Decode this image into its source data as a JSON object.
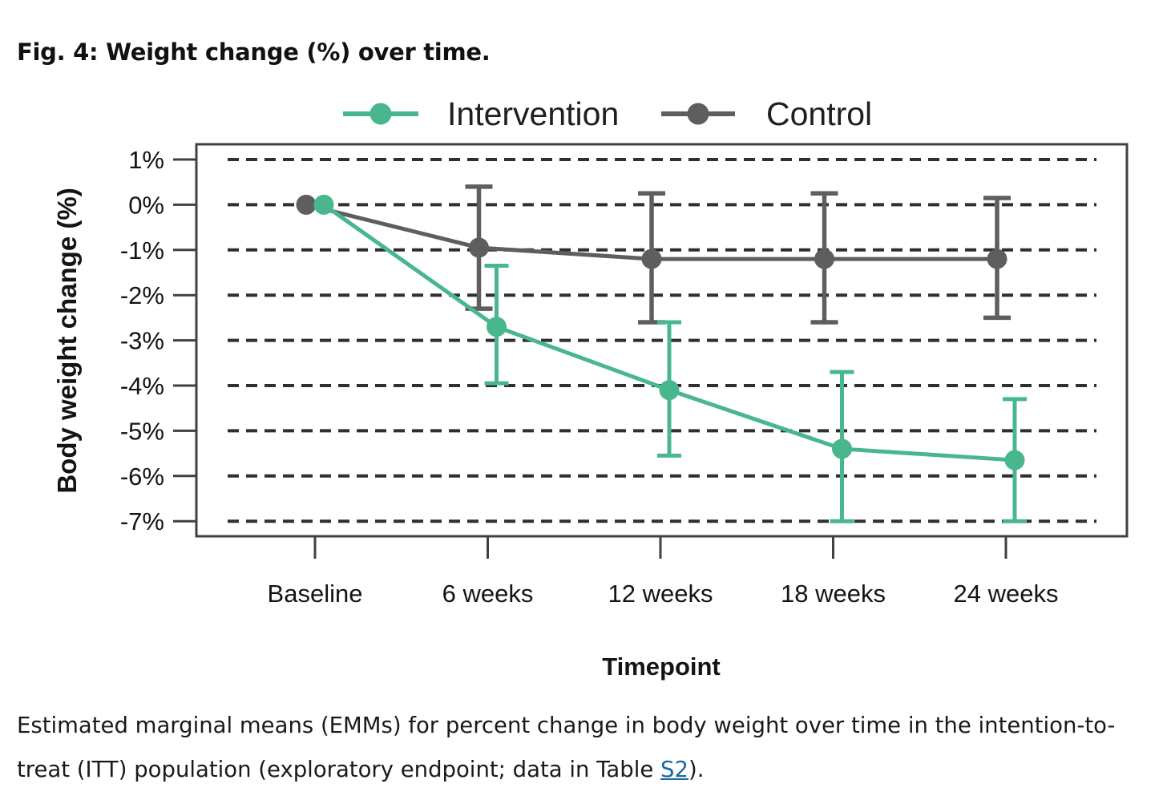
{
  "figure": {
    "title": "Fig. 4: Weight change (%) over time.",
    "caption": {
      "line1": "Estimated marginal means (EMMs) for percent change in body weight over time in the intention-to-",
      "line2_pre": "treat (ITT) population (exploratory endpoint; data in Table ",
      "link_text": "S2",
      "line2_post": ")."
    }
  },
  "colors": {
    "intervention": "#48b78e",
    "control": "#5e5e5e",
    "gridline": "#2f2f2f",
    "plot_border": "#404040",
    "text": "#141414",
    "legend_text": "#1f1f1f",
    "link": "#1769a6",
    "background": "#ffffff"
  },
  "chart_data": {
    "type": "line",
    "title": "",
    "xlabel": "Timepoint",
    "ylabel": "Body weight change (%)",
    "categories": [
      "Baseline",
      "6 weeks",
      "12 weeks",
      "18 weeks",
      "24 weeks"
    ],
    "y_ticks": [
      {
        "label": "1%",
        "value": 1
      },
      {
        "label": "0%",
        "value": 0
      },
      {
        "label": "-1%",
        "value": -1
      },
      {
        "label": "-2%",
        "value": -2
      },
      {
        "label": "-3%",
        "value": -3
      },
      {
        "label": "-4%",
        "value": -4
      },
      {
        "label": "-5%",
        "value": -5
      },
      {
        "label": "-6%",
        "value": -6
      },
      {
        "label": "-7%",
        "value": -7
      }
    ],
    "ylim": [
      -7.3,
      1.35
    ],
    "grid": "horizontal-dashed",
    "legend_position": "top-center",
    "series": [
      {
        "name": "Intervention",
        "color": "#48b78e",
        "values": [
          0,
          -2.7,
          -4.1,
          -5.4,
          -5.65
        ],
        "ci_high": [
          null,
          -1.35,
          -2.6,
          -3.7,
          -4.3
        ],
        "ci_low": [
          null,
          -3.95,
          -5.55,
          -7.0,
          -7.0
        ]
      },
      {
        "name": "Control",
        "color": "#5e5e5e",
        "values": [
          0,
          -0.95,
          -1.2,
          -1.2,
          -1.2
        ],
        "ci_high": [
          null,
          0.4,
          0.25,
          0.25,
          0.15
        ],
        "ci_low": [
          null,
          -2.3,
          -2.6,
          -2.6,
          -2.5
        ]
      }
    ]
  }
}
